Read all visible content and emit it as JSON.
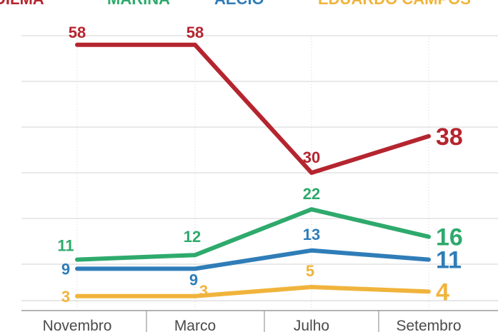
{
  "chart_data": {
    "type": "line",
    "categories": [
      "Novembro",
      "Marco",
      "Julho",
      "Setembro"
    ],
    "ylim": [
      0,
      64
    ],
    "grid": true,
    "legend_placement": "top",
    "series": [
      {
        "name": "DILMA",
        "color": "#b5252f",
        "values": [
          58,
          58,
          30,
          38
        ]
      },
      {
        "name": "MARINA",
        "color": "#2eaa6c",
        "values": [
          11,
          12,
          22,
          16
        ]
      },
      {
        "name": "AÉCIO",
        "color": "#2f7db8",
        "values": [
          9,
          9,
          13,
          11
        ]
      },
      {
        "name": "EDUARDO CAMPOS",
        "color": "#f0b43c",
        "values": [
          3,
          3,
          5,
          4
        ]
      }
    ]
  }
}
